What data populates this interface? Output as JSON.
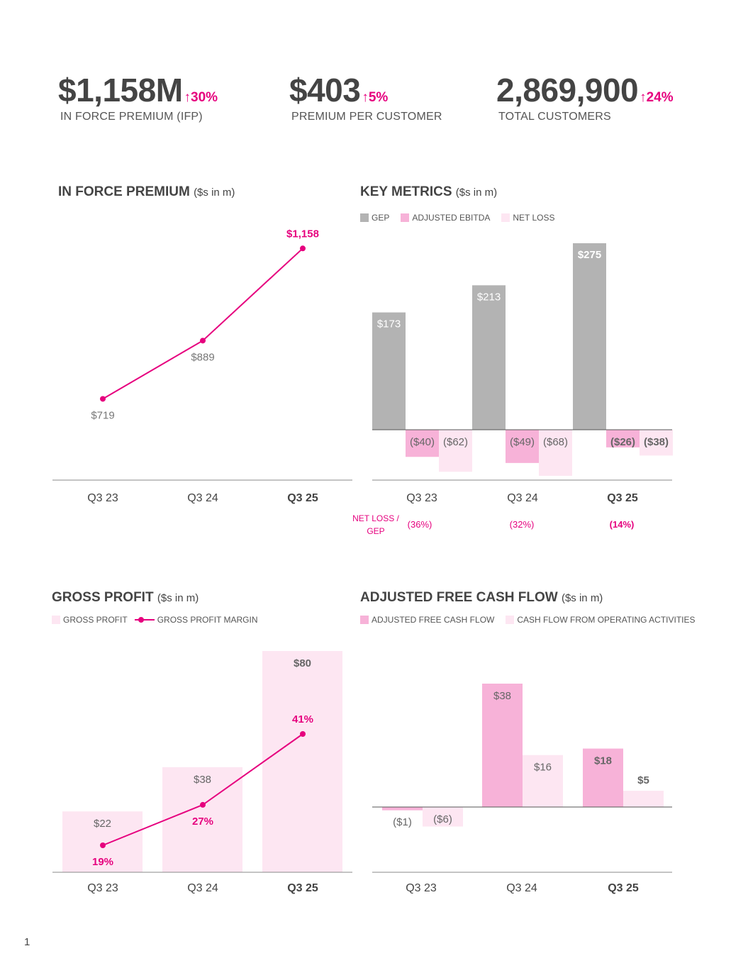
{
  "kpis": [
    {
      "value": "$1,158M",
      "change": "↑30%",
      "label": "IN FORCE PREMIUM (IFP)"
    },
    {
      "value": "$403",
      "change": "↑5%",
      "label": "PREMIUM PER CUSTOMER"
    },
    {
      "value": "2,869,900",
      "change": "↑24%",
      "label": "TOTAL CUSTOMERS"
    }
  ],
  "colors": {
    "pink": "#e6007e",
    "pink_mid": "#f7b2d8",
    "pink_light": "#fde6f2",
    "gray": "#b3b3b3",
    "text": "#444444",
    "axis": "#888888"
  },
  "panels": {
    "ifp": {
      "title": "IN FORCE PREMIUM",
      "unit": "($s in m)"
    },
    "key_metrics": {
      "title": "KEY METRICS",
      "unit": "($s in m)",
      "legend": [
        "GEP",
        "ADJUSTED EBITDA",
        "NET LOSS"
      ],
      "ratio_label_line1": "NET LOSS /",
      "ratio_label_line2": "GEP"
    },
    "gross_profit": {
      "title": "GROSS PROFIT",
      "unit": "($s in m)",
      "legend": [
        "GROSS PROFIT",
        "GROSS PROFIT MARGIN"
      ]
    },
    "fcf": {
      "title": "ADJUSTED FREE CASH FLOW",
      "unit": "($s in m)",
      "legend": [
        "ADJUSTED FREE CASH FLOW",
        "CASH FLOW FROM OPERATING ACTIVITIES"
      ]
    }
  },
  "page_number": "1",
  "chart_data": [
    {
      "type": "line",
      "title": "IN FORCE PREMIUM ($s in m)",
      "categories": [
        "Q3 23",
        "Q3 24",
        "Q3 25"
      ],
      "series": [
        {
          "values": [
            719,
            889,
            1158
          ]
        }
      ],
      "labels": [
        "$719",
        "$889",
        "$1,158"
      ]
    },
    {
      "type": "bar",
      "title": "KEY METRICS ($s in m)",
      "categories": [
        "Q3 23",
        "Q3 24",
        "Q3 25"
      ],
      "series": [
        {
          "name": "GEP",
          "values": [
            173,
            213,
            275
          ],
          "labels": [
            "$173",
            "$213",
            "$275"
          ]
        },
        {
          "name": "ADJUSTED EBITDA",
          "values": [
            -40,
            -49,
            -26
          ],
          "labels": [
            "($40)",
            "($49)",
            "($26)"
          ]
        },
        {
          "name": "NET LOSS",
          "values": [
            -62,
            -68,
            -38
          ],
          "labels": [
            "($62)",
            "($68)",
            "($38)"
          ]
        }
      ],
      "ratio": {
        "name": "NET LOSS / GEP",
        "labels": [
          "(36%)",
          "(32%)",
          "(14%)"
        ]
      }
    },
    {
      "type": "bar",
      "title": "GROSS PROFIT ($s in m)",
      "categories": [
        "Q3 23",
        "Q3 24",
        "Q3 25"
      ],
      "series": [
        {
          "name": "GROSS PROFIT",
          "values": [
            22,
            38,
            80
          ],
          "labels": [
            "$22",
            "$38",
            "$80"
          ]
        },
        {
          "name": "GROSS PROFIT MARGIN",
          "values": [
            19,
            27,
            41
          ],
          "labels": [
            "19%",
            "27%",
            "41%"
          ]
        }
      ]
    },
    {
      "type": "bar",
      "title": "ADJUSTED FREE CASH FLOW ($s in m)",
      "categories": [
        "Q3 23",
        "Q3 24",
        "Q3 25"
      ],
      "series": [
        {
          "name": "ADJUSTED FREE CASH FLOW",
          "values": [
            -1,
            38,
            18
          ],
          "labels": [
            "($1)",
            "$38",
            "$18"
          ]
        },
        {
          "name": "CASH FLOW FROM OPERATING ACTIVITIES",
          "values": [
            -6,
            16,
            5
          ],
          "labels": [
            "($6)",
            "$16",
            "$5"
          ]
        }
      ]
    }
  ]
}
